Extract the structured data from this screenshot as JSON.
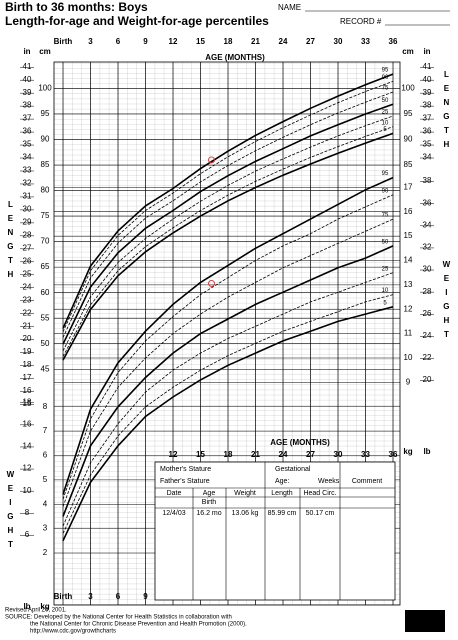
{
  "header": {
    "title": "Birth to 36 months: Boys",
    "subtitle": "Length-for-age and Weight-for-age percentiles",
    "name_label": "NAME",
    "record_label": "RECORD #"
  },
  "side_labels": {
    "length": "LENGTH",
    "weight": "WEIGHT"
  },
  "chart_data": [
    {
      "type": "line",
      "x_label": "AGE (MONTHS)",
      "y_unit": "cm",
      "y2_unit": "in",
      "x": [
        0,
        3,
        6,
        9,
        12,
        15,
        18,
        21,
        24,
        27,
        30,
        33,
        36
      ],
      "xlim": [
        0,
        36
      ],
      "xticks": [
        {
          "value": 0,
          "label": "Birth"
        },
        3,
        6,
        9,
        12,
        15,
        18,
        21,
        24,
        27,
        30,
        33,
        36
      ],
      "ylim": [
        38,
        104
      ],
      "yticks": [
        45,
        50,
        55,
        60,
        65,
        70,
        75,
        80,
        85,
        90,
        95,
        100
      ],
      "y2lim": [
        14.96,
        40.94
      ],
      "y2ticks": [
        15,
        16,
        17,
        18,
        19,
        20,
        21,
        22,
        23,
        24,
        25,
        26,
        27,
        28,
        29,
        30,
        31,
        32,
        33,
        34,
        35,
        36,
        37,
        38,
        39,
        40,
        41
      ],
      "series": [
        {
          "name": "5",
          "color": "#000000",
          "values": [
            46.8,
            56.7,
            63.3,
            68.0,
            71.7,
            75.0,
            78.0,
            80.6,
            83.0,
            85.2,
            87.3,
            89.3,
            91.2
          ]
        },
        {
          "name": "10",
          "color": "#000000",
          "values": [
            47.5,
            57.6,
            64.3,
            69.0,
            72.7,
            76.1,
            79.1,
            81.8,
            84.2,
            86.5,
            88.6,
            90.6,
            92.5
          ]
        },
        {
          "name": "25",
          "color": "#000000",
          "values": [
            48.6,
            59.2,
            65.9,
            70.6,
            74.4,
            77.9,
            81.0,
            83.8,
            86.2,
            88.5,
            90.7,
            92.7,
            94.6
          ]
        },
        {
          "name": "50",
          "color": "#000000",
          "values": [
            49.9,
            61.1,
            67.8,
            72.6,
            76.1,
            79.8,
            82.9,
            85.7,
            88.2,
            90.7,
            92.9,
            95.0,
            96.9
          ]
        },
        {
          "name": "75",
          "color": "#000000",
          "values": [
            51.2,
            62.9,
            69.7,
            74.6,
            78.0,
            81.7,
            84.9,
            87.8,
            90.4,
            92.9,
            95.2,
            97.3,
            99.3
          ]
        },
        {
          "name": "90",
          "color": "#000000",
          "values": [
            52.3,
            64.3,
            71.2,
            76.1,
            79.5,
            83.3,
            86.6,
            89.6,
            92.3,
            94.8,
            97.2,
            99.4,
            101.4
          ]
        },
        {
          "name": "95",
          "color": "#000000",
          "values": [
            53.0,
            65.2,
            72.1,
            77.0,
            80.4,
            84.3,
            87.7,
            90.8,
            93.5,
            96.1,
            98.5,
            100.7,
            102.8
          ]
        }
      ],
      "measurements": {
        "x": [
          16.2
        ],
        "values": [
          85.99
        ],
        "color": "#cc3333"
      }
    },
    {
      "type": "line",
      "y_unit": "kg",
      "y2_unit": "lb",
      "x": [
        0,
        3,
        6,
        9,
        12,
        15,
        18,
        21,
        24,
        27,
        30,
        33,
        36
      ],
      "xlim": [
        0,
        36
      ],
      "ylim": [
        2,
        18
      ],
      "yticks": [
        2,
        3,
        4,
        5,
        6,
        7,
        8,
        9,
        10,
        11,
        12,
        13,
        14,
        15,
        16,
        17
      ],
      "y2lim": [
        4.41,
        39.68
      ],
      "y2ticks": [
        6,
        8,
        10,
        12,
        14,
        16,
        18,
        20,
        22,
        24,
        26,
        28,
        30,
        32,
        34,
        36,
        38
      ],
      "series": [
        {
          "name": "5",
          "color": "#000000",
          "values": [
            2.5,
            4.9,
            6.4,
            7.6,
            8.4,
            9.1,
            9.7,
            10.2,
            10.7,
            11.1,
            11.5,
            11.8,
            12.1
          ]
        },
        {
          "name": "10",
          "color": "#000000",
          "values": [
            2.8,
            5.2,
            6.8,
            8.0,
            8.8,
            9.5,
            10.1,
            10.6,
            11.1,
            11.5,
            11.9,
            12.3,
            12.6
          ]
        },
        {
          "name": "25",
          "color": "#000000",
          "values": [
            3.1,
            5.7,
            7.3,
            8.6,
            9.5,
            10.2,
            10.8,
            11.3,
            11.8,
            12.3,
            12.7,
            13.1,
            13.5
          ]
        },
        {
          "name": "50",
          "color": "#000000",
          "values": [
            3.5,
            6.4,
            8.0,
            9.2,
            10.2,
            11.0,
            11.6,
            12.2,
            12.7,
            13.2,
            13.7,
            14.1,
            14.6
          ]
        },
        {
          "name": "75",
          "color": "#000000",
          "values": [
            3.9,
            7.0,
            8.8,
            10.0,
            11.0,
            11.8,
            12.5,
            13.1,
            13.7,
            14.2,
            14.7,
            15.2,
            15.7
          ]
        },
        {
          "name": "90",
          "color": "#000000",
          "values": [
            4.2,
            7.5,
            9.4,
            10.7,
            11.7,
            12.6,
            13.3,
            14.0,
            14.6,
            15.1,
            15.7,
            16.2,
            16.7
          ]
        },
        {
          "name": "95",
          "color": "#000000",
          "values": [
            4.4,
            7.9,
            9.8,
            11.1,
            12.2,
            13.1,
            13.8,
            14.5,
            15.1,
            15.7,
            16.3,
            16.9,
            17.4
          ]
        }
      ],
      "measurements": {
        "x": [
          16.2
        ],
        "values": [
          13.06
        ],
        "color": "#cc3333"
      }
    }
  ],
  "table": {
    "mothers_stature": "Mother's Stature",
    "fathers_stature": "Father's Stature",
    "gestational": "Gestational",
    "age": "Age:",
    "weeks": "Weeks",
    "comment": "Comment",
    "columns": [
      "Date",
      "Age",
      "Weight",
      "Length",
      "Head Circ."
    ],
    "birth": "Birth",
    "rows": [
      [
        "12/4/03",
        "16.2 mo",
        "13.06 kg",
        "85.99 cm",
        "50.17 cm"
      ]
    ]
  },
  "footer": {
    "revised": "Revised April 20, 2001.",
    "source": "SOURCE: Developed by the National Center for Health Statistics in collaboration with",
    "source2": "the National Center for Chronic Disease Prevention and Health Promotion (2000).",
    "url": "http://www.cdc.gov/growthcharts"
  }
}
